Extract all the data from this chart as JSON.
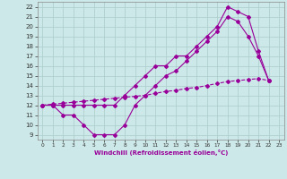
{
  "xlabel": "Windchill (Refroidissement éolien,°C)",
  "xlim": [
    -0.5,
    23.5
  ],
  "ylim": [
    8.5,
    22.5
  ],
  "yticks": [
    9,
    10,
    11,
    12,
    13,
    14,
    15,
    16,
    17,
    18,
    19,
    20,
    21,
    22
  ],
  "xticks": [
    0,
    1,
    2,
    3,
    4,
    5,
    6,
    7,
    8,
    9,
    10,
    11,
    12,
    13,
    14,
    15,
    16,
    17,
    18,
    19,
    20,
    21,
    22,
    23
  ],
  "line_upper_x": [
    0,
    1,
    2,
    3,
    4,
    5,
    6,
    7,
    8,
    9,
    10,
    11,
    12,
    13,
    14,
    15,
    16,
    17,
    18,
    19,
    20,
    21,
    22
  ],
  "line_upper_y": [
    12,
    12,
    12,
    12,
    12,
    12,
    12,
    12,
    13,
    14,
    15,
    16,
    16,
    17,
    17,
    18,
    19,
    20,
    22,
    21.5,
    21,
    17.5,
    14.5
  ],
  "line_lower_x": [
    0,
    1,
    2,
    3,
    4,
    5,
    6,
    7,
    8,
    9,
    10,
    11,
    12,
    13,
    14,
    15,
    16,
    17,
    18,
    19,
    20,
    21,
    22
  ],
  "line_lower_y": [
    12,
    12,
    11,
    11,
    10,
    9,
    9,
    9,
    10,
    12,
    13,
    14,
    15,
    15.5,
    16.5,
    17.5,
    18.5,
    19.5,
    21,
    20.5,
    19,
    17,
    14.5
  ],
  "line_diag_x": [
    0,
    1,
    2,
    3,
    4,
    5,
    6,
    7,
    8,
    9,
    10,
    11,
    12,
    13,
    14,
    15,
    16,
    17,
    18,
    19,
    20,
    21,
    22
  ],
  "line_diag_y": [
    12,
    12.1,
    12.2,
    12.3,
    12.4,
    12.5,
    12.6,
    12.7,
    12.8,
    12.9,
    13.0,
    13.2,
    13.4,
    13.5,
    13.7,
    13.8,
    14.0,
    14.2,
    14.4,
    14.5,
    14.6,
    14.7,
    14.5
  ],
  "line_color": "#990099",
  "bg_color": "#cce8e8",
  "grid_color": "#aacccc"
}
